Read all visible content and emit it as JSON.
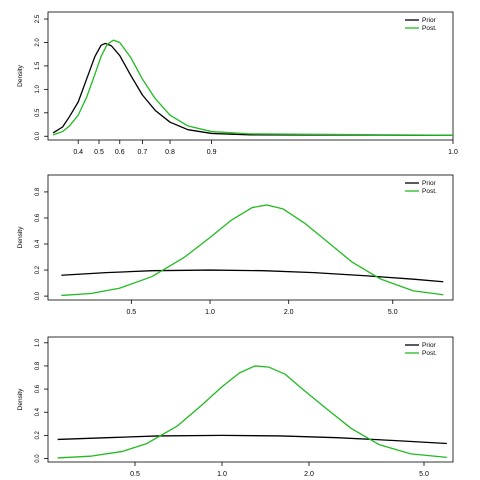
{
  "chart_data": [
    {
      "type": "line",
      "ylabel": "Density",
      "xscale": "logit",
      "xlim": [
        0.27,
        1.02
      ],
      "ylim": [
        -0.08,
        2.65
      ],
      "xticks": [
        0.4,
        0.5,
        0.6,
        0.7,
        0.8,
        0.9,
        1.0
      ],
      "xtick_labels": [
        "0.4",
        "0.5",
        "0.6",
        "0.7",
        "0.8",
        "0.9",
        "1.0"
      ],
      "yticks": [
        0,
        0.5,
        1.0,
        1.5,
        2.0,
        2.5
      ],
      "ytick_labels": [
        "0.0",
        "0.5",
        "1.0",
        "1.5",
        "2.0",
        "2.5"
      ],
      "legend_position": "top-right",
      "grid": false,
      "series": [
        {
          "name": "Prior",
          "color": "#000000",
          "x": [
            0.29,
            0.33,
            0.36,
            0.4,
            0.44,
            0.48,
            0.51,
            0.53,
            0.56,
            0.6,
            0.65,
            0.7,
            0.75,
            0.8,
            0.85,
            0.9,
            0.95,
            1.0
          ],
          "y": [
            0.07,
            0.2,
            0.42,
            0.73,
            1.22,
            1.7,
            1.94,
            1.98,
            1.93,
            1.72,
            1.3,
            0.88,
            0.55,
            0.3,
            0.14,
            0.06,
            0.03,
            0.02
          ]
        },
        {
          "name": "Post.",
          "color": "#22bb22",
          "x": [
            0.29,
            0.33,
            0.36,
            0.4,
            0.44,
            0.48,
            0.51,
            0.54,
            0.57,
            0.6,
            0.65,
            0.7,
            0.75,
            0.8,
            0.85,
            0.9,
            0.95,
            1.0
          ],
          "y": [
            0.03,
            0.1,
            0.22,
            0.45,
            0.83,
            1.32,
            1.7,
            1.96,
            2.05,
            2.0,
            1.68,
            1.22,
            0.8,
            0.45,
            0.22,
            0.1,
            0.05,
            0.02
          ]
        }
      ]
    },
    {
      "type": "line",
      "ylabel": "Density",
      "xscale": "log",
      "xlim": [
        0.24,
        8.5
      ],
      "ylim": [
        -0.03,
        0.93
      ],
      "xticks": [
        0.5,
        1.0,
        2.0,
        5.0
      ],
      "xtick_labels": [
        "0.5",
        "1.0",
        "2.0",
        "5.0"
      ],
      "yticks": [
        0,
        0.2,
        0.4,
        0.6,
        0.8
      ],
      "ytick_labels": [
        "0.0",
        "0.2",
        "0.4",
        "0.6",
        "0.8"
      ],
      "legend_position": "top-right",
      "grid": false,
      "series": [
        {
          "name": "Prior",
          "color": "#000000",
          "x": [
            0.27,
            0.4,
            0.6,
            1.0,
            1.6,
            2.5,
            4.0,
            6.0,
            7.8
          ],
          "y": [
            0.16,
            0.18,
            0.195,
            0.2,
            0.195,
            0.18,
            0.155,
            0.13,
            0.11
          ]
        },
        {
          "name": "Post.",
          "color": "#22bb22",
          "x": [
            0.27,
            0.35,
            0.45,
            0.6,
            0.8,
            1.0,
            1.2,
            1.45,
            1.65,
            1.9,
            2.3,
            2.8,
            3.5,
            4.5,
            6.0,
            7.8
          ],
          "y": [
            0.005,
            0.02,
            0.06,
            0.15,
            0.3,
            0.45,
            0.58,
            0.68,
            0.7,
            0.67,
            0.56,
            0.42,
            0.26,
            0.13,
            0.04,
            0.01
          ]
        }
      ]
    },
    {
      "type": "line",
      "ylabel": "Density",
      "xscale": "log",
      "xlim": [
        0.25,
        6.3
      ],
      "ylim": [
        -0.03,
        1.05
      ],
      "xticks": [
        0.5,
        1.0,
        2.0,
        5.0
      ],
      "xtick_labels": [
        "0.5",
        "1.0",
        "2.0",
        "5.0"
      ],
      "yticks": [
        0,
        0.2,
        0.4,
        0.6,
        0.8,
        1.0
      ],
      "ytick_labels": [
        "0.0",
        "0.2",
        "0.4",
        "0.6",
        "0.8",
        "1.0"
      ],
      "legend_position": "top-right",
      "grid": false,
      "series": [
        {
          "name": "Prior",
          "color": "#000000",
          "x": [
            0.27,
            0.4,
            0.6,
            1.0,
            1.6,
            2.5,
            4.0,
            6.0
          ],
          "y": [
            0.165,
            0.18,
            0.195,
            0.2,
            0.195,
            0.18,
            0.155,
            0.13
          ]
        },
        {
          "name": "Post.",
          "color": "#22bb22",
          "x": [
            0.27,
            0.35,
            0.45,
            0.55,
            0.7,
            0.85,
            1.0,
            1.15,
            1.3,
            1.45,
            1.65,
            1.9,
            2.3,
            2.8,
            3.5,
            4.5,
            6.0
          ],
          "y": [
            0.005,
            0.02,
            0.06,
            0.13,
            0.28,
            0.46,
            0.62,
            0.74,
            0.8,
            0.79,
            0.73,
            0.6,
            0.43,
            0.26,
            0.12,
            0.04,
            0.01
          ]
        }
      ]
    }
  ]
}
